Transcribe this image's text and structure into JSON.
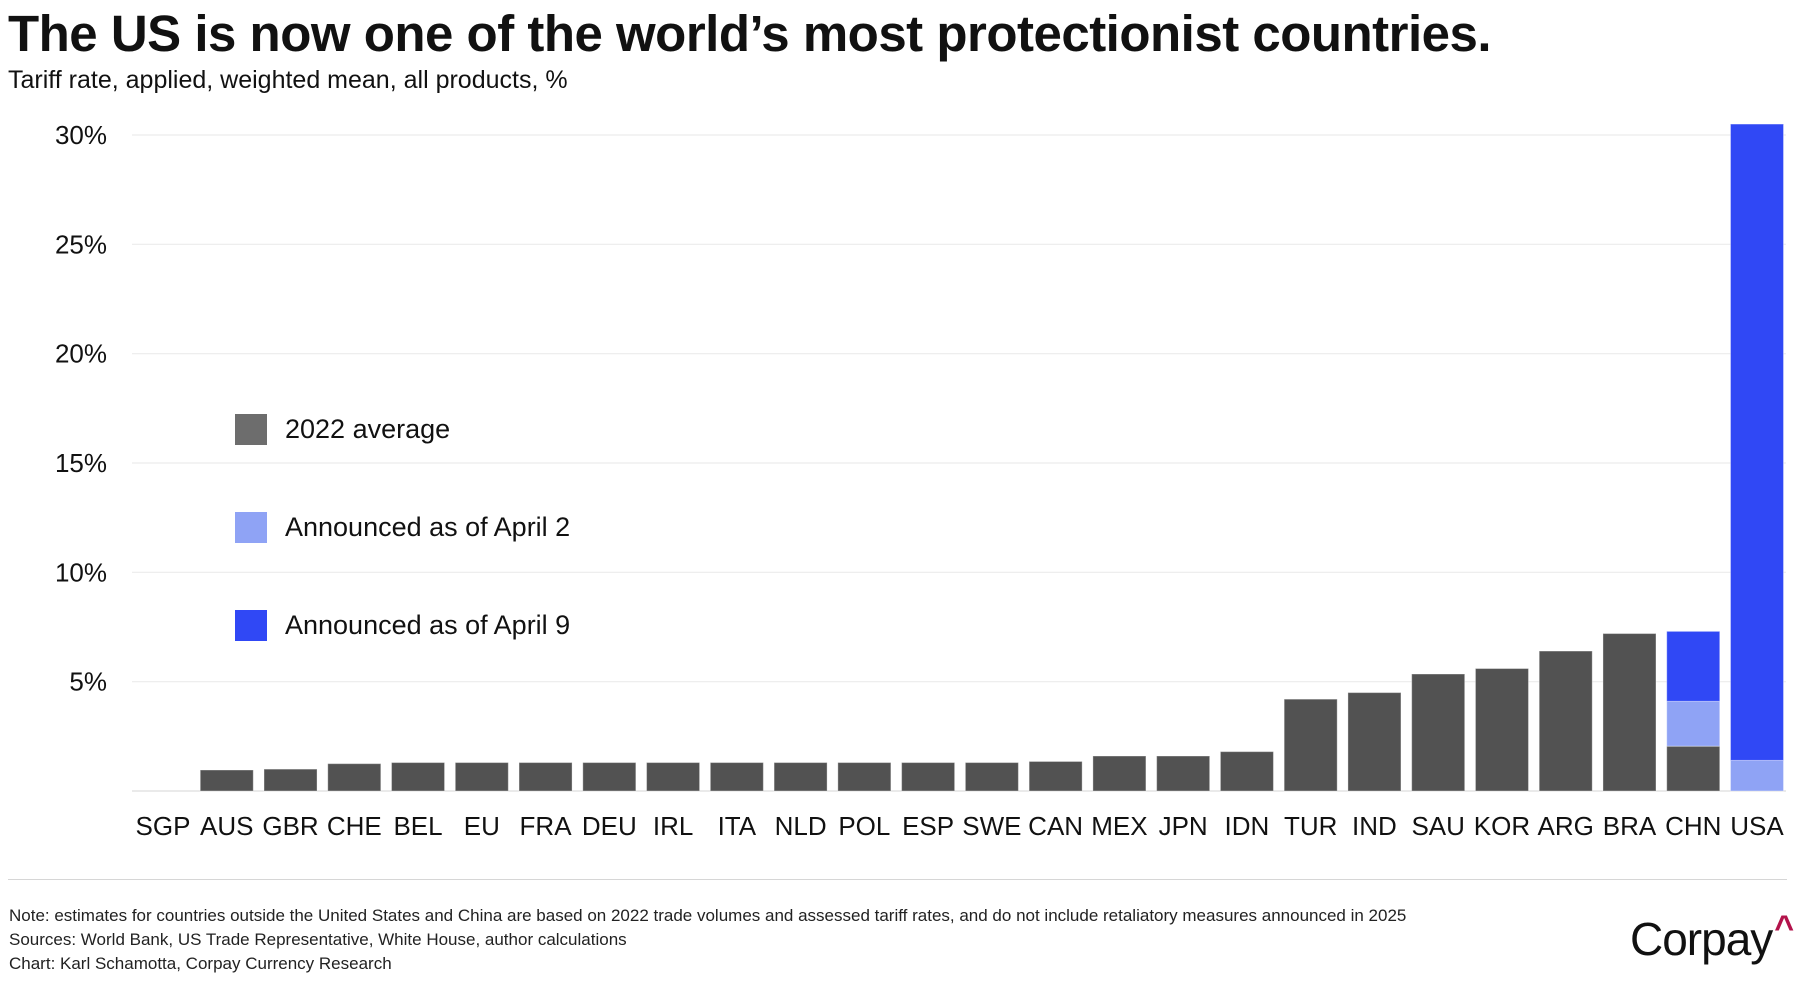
{
  "header": {
    "title": "The US is now one of the world’s most protectionist countries.",
    "subtitle": "Tariff rate, applied, weighted mean, all products, %"
  },
  "legend": [
    {
      "label": "2022 average",
      "color": "#6d6d6d"
    },
    {
      "label": "Announced as of April 2",
      "color": "#8fa3f5"
    },
    {
      "label": "Announced as of April 9",
      "color": "#3048f5"
    }
  ],
  "chart_data": {
    "type": "bar",
    "stacked": true,
    "title": "The US is now one of the world’s most protectionist countries.",
    "subtitle": "Tariff rate, applied, weighted mean, all products, %",
    "xlabel": "",
    "ylabel": "",
    "ylim": [
      0,
      30
    ],
    "yticks": [
      5,
      10,
      15,
      20,
      25,
      30
    ],
    "ytick_labels": [
      "5%",
      "10%",
      "15%",
      "20%",
      "25%",
      "30%"
    ],
    "grid": true,
    "legend_position": "left-middle",
    "categories": [
      "SGP",
      "AUS",
      "GBR",
      "CHE",
      "BEL",
      "EU",
      "FRA",
      "DEU",
      "IRL",
      "ITA",
      "NLD",
      "POL",
      "ESP",
      "SWE",
      "CAN",
      "MEX",
      "JPN",
      "IDN",
      "TUR",
      "IND",
      "SAU",
      "KOR",
      "ARG",
      "BRA",
      "CHN",
      "USA"
    ],
    "series": [
      {
        "name": "2022 average",
        "color": "#525252",
        "values": [
          0.0,
          0.96,
          1.0,
          1.25,
          1.3,
          1.3,
          1.3,
          1.3,
          1.3,
          1.3,
          1.3,
          1.3,
          1.3,
          1.3,
          1.35,
          1.6,
          1.6,
          1.8,
          4.2,
          4.5,
          5.35,
          5.6,
          6.4,
          7.2,
          2.05,
          0.0
        ]
      },
      {
        "name": "Announced as of April 2",
        "color": "#8fa3f5",
        "values": [
          0,
          0,
          0,
          0,
          0,
          0,
          0,
          0,
          0,
          0,
          0,
          0,
          0,
          0,
          0,
          0,
          0,
          0,
          0,
          0,
          0,
          0,
          0,
          0,
          2.05,
          1.4
        ]
      },
      {
        "name": "Announced as of April 9",
        "color": "#3048f5",
        "values": [
          0,
          0,
          0,
          0,
          0,
          0,
          0,
          0,
          0,
          0,
          0,
          0,
          0,
          0,
          0,
          0,
          0,
          0,
          0,
          0,
          0,
          0,
          0,
          0,
          3.2,
          29.1
        ]
      }
    ]
  },
  "footer": {
    "note": "Note: estimates for countries outside the United States and China are based on 2022 trade volumes and assessed tariff rates, and do not include retaliatory measures announced in 2025",
    "sources": "Sources: World Bank, US Trade Representative, White House, author calculations",
    "credit": "Chart: Karl Schamotta, Corpay Currency Research",
    "logo_text": "Corpay",
    "logo_caret": "^"
  }
}
